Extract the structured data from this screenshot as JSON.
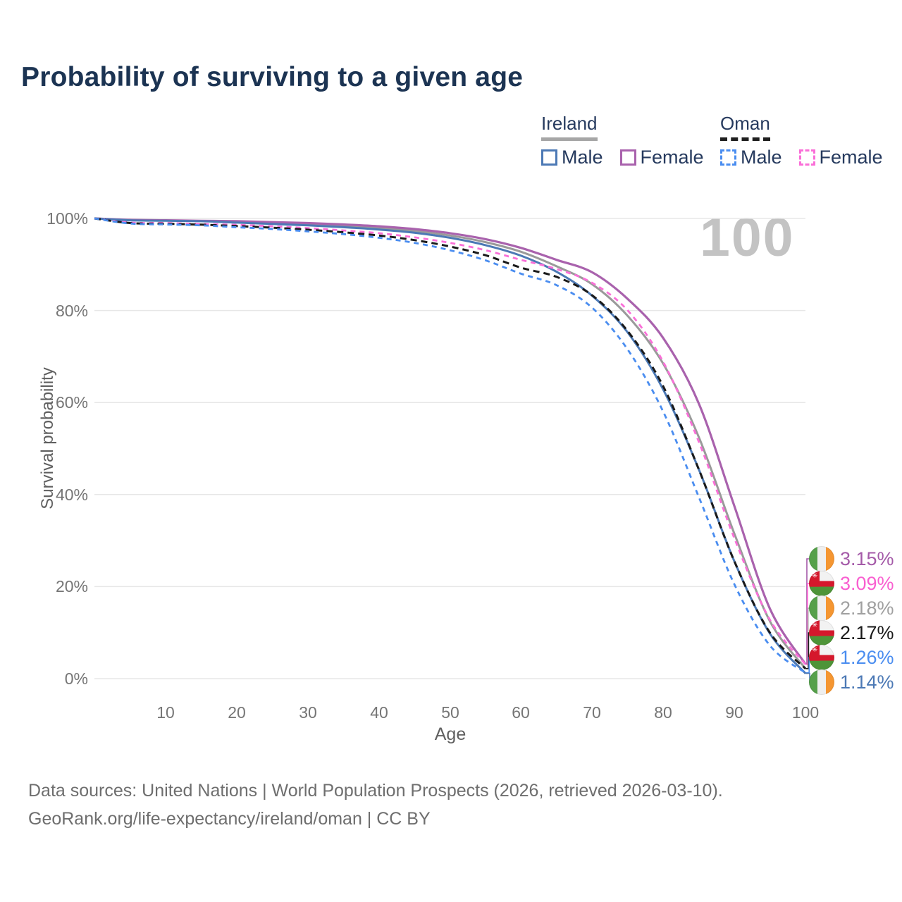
{
  "title": "Probability of surviving to a given age",
  "watermark": "100",
  "legend": {
    "groups": [
      {
        "label": "Ireland",
        "line_style": "solid",
        "items": [
          {
            "label": "Male",
            "series": "ireland_male"
          },
          {
            "label": "Female",
            "series": "ireland_female"
          }
        ]
      },
      {
        "label": "Oman",
        "line_style": "dashed",
        "items": [
          {
            "label": "Male",
            "series": "oman_male"
          },
          {
            "label": "Female",
            "series": "oman_female"
          }
        ]
      }
    ]
  },
  "axes": {
    "y": {
      "label": "Survival probability",
      "ticks": [
        "100%",
        "80%",
        "60%",
        "40%",
        "20%",
        "0%"
      ]
    },
    "x": {
      "label": "Age",
      "ticks": [
        "10",
        "20",
        "30",
        "40",
        "50",
        "60",
        "70",
        "80",
        "90",
        "100"
      ]
    }
  },
  "end_labels": [
    {
      "value": "3.15%",
      "flag": "ireland",
      "series": "ireland_female",
      "color": "#a45aa8"
    },
    {
      "value": "3.09%",
      "flag": "oman",
      "series": "oman_female",
      "color": "#f95fd0"
    },
    {
      "value": "2.18%",
      "flag": "ireland",
      "series": "ireland_both",
      "color": "#a0a0a0"
    },
    {
      "value": "2.17%",
      "flag": "oman",
      "series": "oman_both",
      "color": "#1a1a1a"
    },
    {
      "value": "1.26%",
      "flag": "oman",
      "series": "oman_male",
      "color": "#4a8df0"
    },
    {
      "value": "1.14%",
      "flag": "ireland",
      "series": "ireland_male",
      "color": "#4c79b5"
    }
  ],
  "footer": {
    "line1": "Data sources: United Nations | World Population Prospects (2026, retrieved 2026-03-10).",
    "line2": "GeoRank.org/life-expectancy/ireland/oman | CC BY"
  },
  "chart_data": {
    "type": "line",
    "title": "Probability of surviving to a given age",
    "xlabel": "Age",
    "ylabel": "Survival probability",
    "xlim": [
      0,
      100
    ],
    "ylim": [
      0,
      100
    ],
    "grid": "horizontal",
    "legend_position": "top-right",
    "x": [
      0,
      5,
      10,
      15,
      20,
      25,
      30,
      35,
      40,
      45,
      50,
      55,
      60,
      65,
      70,
      75,
      80,
      85,
      90,
      95,
      100
    ],
    "series": [
      {
        "id": "ireland_both",
        "name": "Ireland (both sexes)",
        "color": "#9a9a9a",
        "dash": "solid",
        "width": 3,
        "values": [
          100,
          99.65,
          99.55,
          99.45,
          99.25,
          99.0,
          98.75,
          98.4,
          97.95,
          97.3,
          96.3,
          94.85,
          92.75,
          89.6,
          85.7,
          78.8,
          68.4,
          52.5,
          31.5,
          12.5,
          2.18
        ]
      },
      {
        "id": "ireland_female",
        "name": "Ireland Female",
        "color": "#a962ad",
        "dash": "solid",
        "width": 3.2,
        "values": [
          100,
          99.7,
          99.6,
          99.5,
          99.4,
          99.2,
          99.0,
          98.7,
          98.3,
          97.7,
          96.8,
          95.5,
          93.6,
          91.0,
          88.3,
          82.5,
          74.0,
          59.8,
          37.5,
          15.2,
          3.15
        ]
      },
      {
        "id": "ireland_male",
        "name": "Ireland Male",
        "color": "#4c79b5",
        "dash": "solid",
        "width": 3,
        "values": [
          100,
          99.6,
          99.5,
          99.4,
          99.1,
          98.8,
          98.5,
          98.1,
          97.6,
          96.9,
          95.8,
          94.2,
          91.9,
          88.4,
          83.2,
          75.2,
          62.8,
          45.5,
          25.5,
          9.8,
          1.14
        ]
      },
      {
        "id": "oman_female",
        "name": "Oman Female",
        "color": "#fa6fd8",
        "dash": "7 6",
        "width": 2.8,
        "values": [
          100,
          99.1,
          99.0,
          98.8,
          98.6,
          98.3,
          97.9,
          97.4,
          96.8,
          95.9,
          94.7,
          93.1,
          91.0,
          89.0,
          86.0,
          80.0,
          68.8,
          51.5,
          30.5,
          12.8,
          3.09
        ]
      },
      {
        "id": "oman_both",
        "name": "Oman (both sexes)",
        "color": "#1a1a1a",
        "dash": "9 6",
        "width": 3,
        "values": [
          100,
          99.0,
          98.85,
          98.65,
          98.35,
          98.0,
          97.55,
          97.0,
          96.3,
          95.3,
          93.9,
          92.0,
          89.3,
          87.3,
          83.3,
          75.5,
          63.5,
          45.5,
          25.5,
          10.0,
          2.17
        ]
      },
      {
        "id": "oman_male",
        "name": "Oman Male",
        "color": "#4a8df0",
        "dash": "7 6",
        "width": 2.8,
        "values": [
          100,
          98.9,
          98.7,
          98.5,
          98.1,
          97.7,
          97.2,
          96.6,
          95.8,
          94.7,
          93.1,
          90.9,
          88.0,
          85.5,
          80.6,
          71.5,
          58.0,
          39.5,
          20.5,
          7.2,
          1.26
        ]
      }
    ]
  }
}
